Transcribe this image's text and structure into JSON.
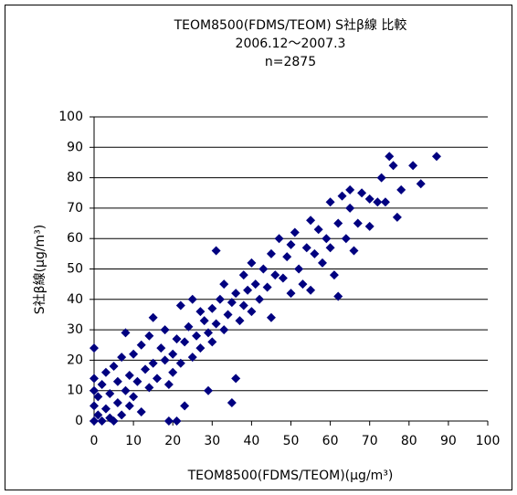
{
  "chart_data": {
    "type": "scatter",
    "title": "TEOM8500(FDMS/TEOM)  S社β線 比較",
    "subtitle": "2006.12〜2007.3",
    "annotation": "n=2875",
    "x_label": "TEOM8500(FDMS/TEOM)(μg/m³)",
    "y_label": "S社β線(μg/m³)",
    "color": "#000080",
    "grid": true,
    "xlim": [
      0,
      100
    ],
    "ylim": [
      0,
      100
    ],
    "xticks": [
      0,
      10,
      20,
      30,
      40,
      50,
      60,
      70,
      80,
      90,
      100
    ],
    "yticks": [
      0,
      10,
      20,
      30,
      40,
      50,
      60,
      70,
      80,
      90,
      100
    ],
    "x": [
      0,
      0,
      0,
      0,
      0,
      1,
      1,
      2,
      2,
      3,
      3,
      4,
      4,
      5,
      5,
      6,
      6,
      7,
      7,
      8,
      8,
      9,
      9,
      10,
      10,
      11,
      12,
      12,
      13,
      14,
      14,
      15,
      15,
      16,
      17,
      18,
      18,
      19,
      19,
      20,
      20,
      21,
      21,
      22,
      22,
      23,
      23,
      24,
      25,
      25,
      26,
      27,
      27,
      28,
      29,
      29,
      30,
      30,
      31,
      31,
      32,
      33,
      33,
      34,
      35,
      35,
      36,
      36,
      37,
      38,
      38,
      39,
      40,
      40,
      41,
      42,
      43,
      44,
      45,
      45,
      46,
      47,
      48,
      49,
      50,
      50,
      51,
      52,
      53,
      54,
      55,
      55,
      56,
      57,
      58,
      59,
      60,
      60,
      61,
      62,
      62,
      63,
      64,
      65,
      65,
      66,
      67,
      68,
      70,
      70,
      72,
      73,
      74,
      75,
      76,
      77,
      78,
      81,
      83,
      87
    ],
    "values": [
      0,
      5,
      10,
      14,
      24,
      2,
      8,
      0,
      12,
      4,
      16,
      1,
      9,
      0,
      18,
      6,
      13,
      2,
      21,
      10,
      29,
      5,
      15,
      22,
      8,
      13,
      25,
      3,
      17,
      11,
      28,
      19,
      34,
      14,
      24,
      20,
      30,
      0,
      12,
      22,
      16,
      27,
      0,
      38,
      19,
      5,
      26,
      31,
      21,
      40,
      28,
      24,
      36,
      33,
      10,
      29,
      37,
      26,
      56,
      32,
      40,
      30,
      45,
      35,
      6,
      39,
      14,
      42,
      33,
      48,
      38,
      43,
      36,
      52,
      45,
      40,
      50,
      44,
      55,
      34,
      48,
      60,
      47,
      54,
      58,
      42,
      62,
      50,
      45,
      57,
      66,
      43,
      55,
      63,
      52,
      60,
      72,
      57,
      48,
      41,
      65,
      74,
      60,
      70,
      76,
      56,
      65,
      75,
      64,
      73,
      72,
      80,
      72,
      87,
      84,
      67,
      76,
      84,
      78,
      87
    ]
  }
}
